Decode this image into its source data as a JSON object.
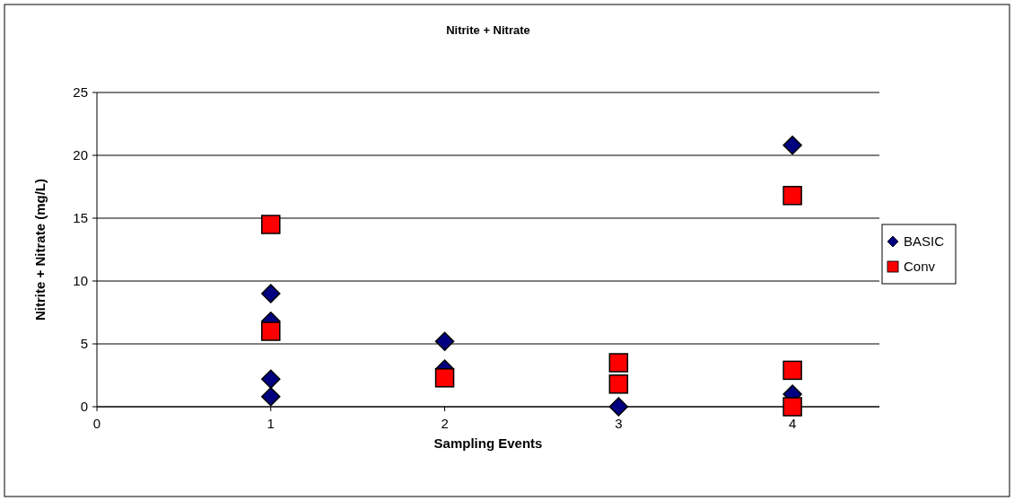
{
  "chart_data": {
    "type": "scatter",
    "title": "Nitrite + Nitrate",
    "xlabel": "Sampling Events",
    "ylabel": "Nitrite + Nitrate (mg/L)",
    "xlim": [
      0,
      4.5
    ],
    "xticks": [
      0,
      1,
      2,
      3,
      4
    ],
    "ylim": [
      0,
      25
    ],
    "yticks": [
      0,
      5,
      10,
      15,
      20,
      25
    ],
    "grid": "y",
    "legend": "right",
    "series": [
      {
        "name": "BASIC",
        "color": "#000080",
        "marker": "diamond",
        "x": [
          1,
          1,
          1,
          1,
          2,
          2,
          3,
          4,
          4
        ],
        "values": [
          9,
          6.8,
          2.2,
          0.8,
          5.2,
          3,
          0,
          20.8,
          1
        ]
      },
      {
        "name": "Conv",
        "color": "#ff0000",
        "marker": "square",
        "x": [
          1,
          1,
          2,
          3,
          3,
          4,
          4,
          4
        ],
        "values": [
          14.5,
          6,
          2.3,
          3.5,
          1.8,
          16.8,
          2.9,
          0
        ]
      }
    ]
  }
}
